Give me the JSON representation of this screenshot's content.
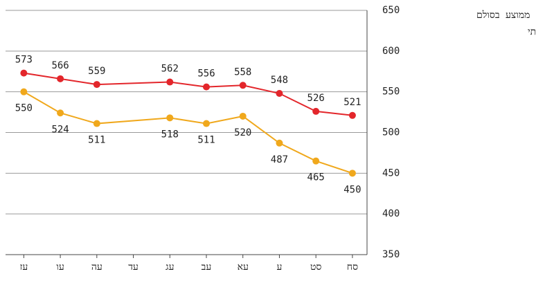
{
  "chart_data": {
    "type": "line",
    "title": "ממוצע בסולם",
    "subtitle": "מיצ\"ב רב־שנתי",
    "x": [
      77,
      76,
      75,
      73,
      72,
      71,
      70,
      69,
      68
    ],
    "xlim": [
      77.5,
      67.6
    ],
    "xticks": [
      {
        "value": 77,
        "label": "עז"
      },
      {
        "value": 76,
        "label": "עו"
      },
      {
        "value": 75,
        "label": "עה"
      },
      {
        "value": 74,
        "label": "עד"
      },
      {
        "value": 73,
        "label": "עג"
      },
      {
        "value": 72,
        "label": "עב"
      },
      {
        "value": 71,
        "label": "עא"
      },
      {
        "value": 70,
        "label": "ע"
      },
      {
        "value": 69,
        "label": "סט"
      },
      {
        "value": 68,
        "label": "סח"
      }
    ],
    "ylim": [
      350,
      650
    ],
    "yticks": [
      350,
      400,
      450,
      500,
      550,
      600,
      650
    ],
    "grid": true,
    "series": [
      {
        "color": "#e3262b",
        "values": [
          573,
          566,
          559,
          562,
          556,
          558,
          548,
          526,
          521
        ],
        "label_side": "above"
      },
      {
        "color": "#f0a81c",
        "values": [
          550,
          524,
          511,
          518,
          511,
          520,
          487,
          465,
          450
        ],
        "label_side": "below"
      }
    ]
  }
}
